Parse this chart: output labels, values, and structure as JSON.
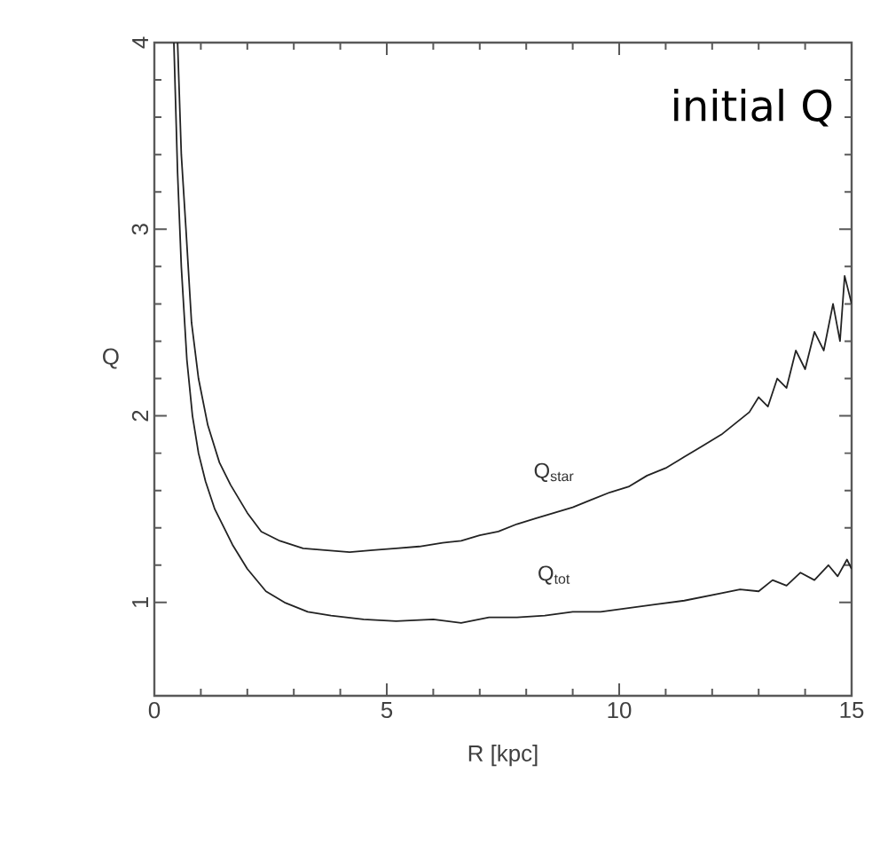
{
  "chart_data": {
    "type": "line",
    "title": "initial Q",
    "xlabel": "R [kpc]",
    "ylabel": "Q",
    "xlim": [
      0,
      15
    ],
    "ylim": [
      0.5,
      4
    ],
    "xticks": [
      0,
      5,
      10,
      15
    ],
    "yticks": [
      1,
      2,
      3,
      4
    ],
    "grid": false,
    "marker": "none",
    "line_style": "solid",
    "series": [
      {
        "color": "#222222",
        "x": [
          0.5,
          0.58,
          0.68,
          0.8,
          0.95,
          1.15,
          1.4,
          1.64,
          2.0,
          2.3,
          2.7,
          3.2,
          3.7,
          4.2,
          4.7,
          5.2,
          5.7,
          6.2,
          6.6,
          7.0,
          7.4,
          7.8,
          8.2,
          8.6,
          9.0,
          9.4,
          9.8,
          10.2,
          10.6,
          11.0,
          11.4,
          11.8,
          12.2,
          12.5,
          12.8,
          13.0,
          13.2,
          13.4,
          13.6,
          13.8,
          14.0,
          14.2,
          14.4,
          14.6,
          14.75,
          14.85,
          15
        ],
        "values": [
          4.0,
          3.4,
          3.0,
          2.5,
          2.2,
          1.95,
          1.75,
          1.63,
          1.48,
          1.38,
          1.33,
          1.29,
          1.28,
          1.27,
          1.28,
          1.29,
          1.3,
          1.32,
          1.33,
          1.36,
          1.38,
          1.42,
          1.45,
          1.48,
          1.51,
          1.55,
          1.59,
          1.62,
          1.68,
          1.72,
          1.78,
          1.84,
          1.9,
          1.96,
          2.02,
          2.1,
          2.05,
          2.2,
          2.15,
          2.35,
          2.25,
          2.45,
          2.35,
          2.6,
          2.4,
          2.75,
          2.6
        ]
      },
      {
        "color": "#222222",
        "x": [
          0.42,
          0.5,
          0.58,
          0.7,
          0.82,
          0.95,
          1.1,
          1.3,
          1.68,
          2.0,
          2.4,
          2.8,
          3.3,
          3.8,
          4.5,
          5.2,
          6.0,
          6.6,
          7.2,
          7.8,
          8.4,
          9.0,
          9.6,
          10.2,
          10.8,
          11.4,
          11.8,
          12.2,
          12.6,
          13.0,
          13.3,
          13.6,
          13.9,
          14.2,
          14.5,
          14.7,
          14.9,
          15
        ],
        "values": [
          4.0,
          3.3,
          2.8,
          2.3,
          2.0,
          1.8,
          1.65,
          1.5,
          1.31,
          1.18,
          1.06,
          1.0,
          0.95,
          0.93,
          0.91,
          0.9,
          0.91,
          0.89,
          0.92,
          0.92,
          0.93,
          0.95,
          0.95,
          0.97,
          0.99,
          1.01,
          1.03,
          1.05,
          1.07,
          1.06,
          1.12,
          1.09,
          1.16,
          1.12,
          1.2,
          1.14,
          1.23,
          1.18
        ]
      }
    ],
    "annotations": [
      {
        "text": "Q$_{star}$",
        "x": 8.6,
        "y": 1.48
      },
      {
        "text": "Q$_{tot}$",
        "x": 8.6,
        "y": 0.93
      }
    ]
  }
}
